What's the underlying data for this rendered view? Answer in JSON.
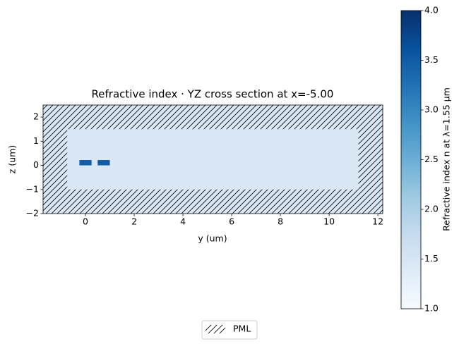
{
  "chart_data": {
    "type": "cross_section",
    "title": "Refractive index · YZ cross section at x=-5.00",
    "xlabel": "y (um)",
    "ylabel": "z (um)",
    "xlim": [
      -1.74,
      12.2
    ],
    "ylim": [
      -2,
      2.5
    ],
    "xticks": [
      0,
      2,
      4,
      6,
      8,
      10,
      12
    ],
    "yticks": [
      {
        "value": -2,
        "label": "−2"
      },
      {
        "value": -1,
        "label": "−1"
      },
      0,
      1,
      2
    ],
    "colormap": "Blues",
    "background_n": 1.44,
    "pml_free_region": {
      "y": [
        -0.75,
        11.2
      ],
      "z": [
        -1,
        1.5
      ]
    },
    "structures": [
      {
        "y": [
          -0.25,
          0.25
        ],
        "z": [
          0,
          0.22
        ],
        "n": 3.48
      },
      {
        "y": [
          0.5,
          1.0
        ],
        "z": [
          0,
          0.22
        ],
        "n": 3.48
      }
    ],
    "colorbar": {
      "label": "Refractive index n at λ=1.55 μm",
      "clim": [
        1,
        4
      ],
      "ticks": [
        {
          "value": 1,
          "label": "1.0"
        },
        {
          "value": 1.5,
          "label": "1.5"
        },
        {
          "value": 2,
          "label": "2.0"
        },
        {
          "value": 2.5,
          "label": "2.5"
        },
        {
          "value": 3,
          "label": "3.0"
        },
        {
          "value": 3.5,
          "label": "3.5"
        },
        {
          "value": 4,
          "label": "4.0"
        }
      ]
    },
    "legend": [
      {
        "name": "PML",
        "hatch": "///"
      }
    ]
  }
}
